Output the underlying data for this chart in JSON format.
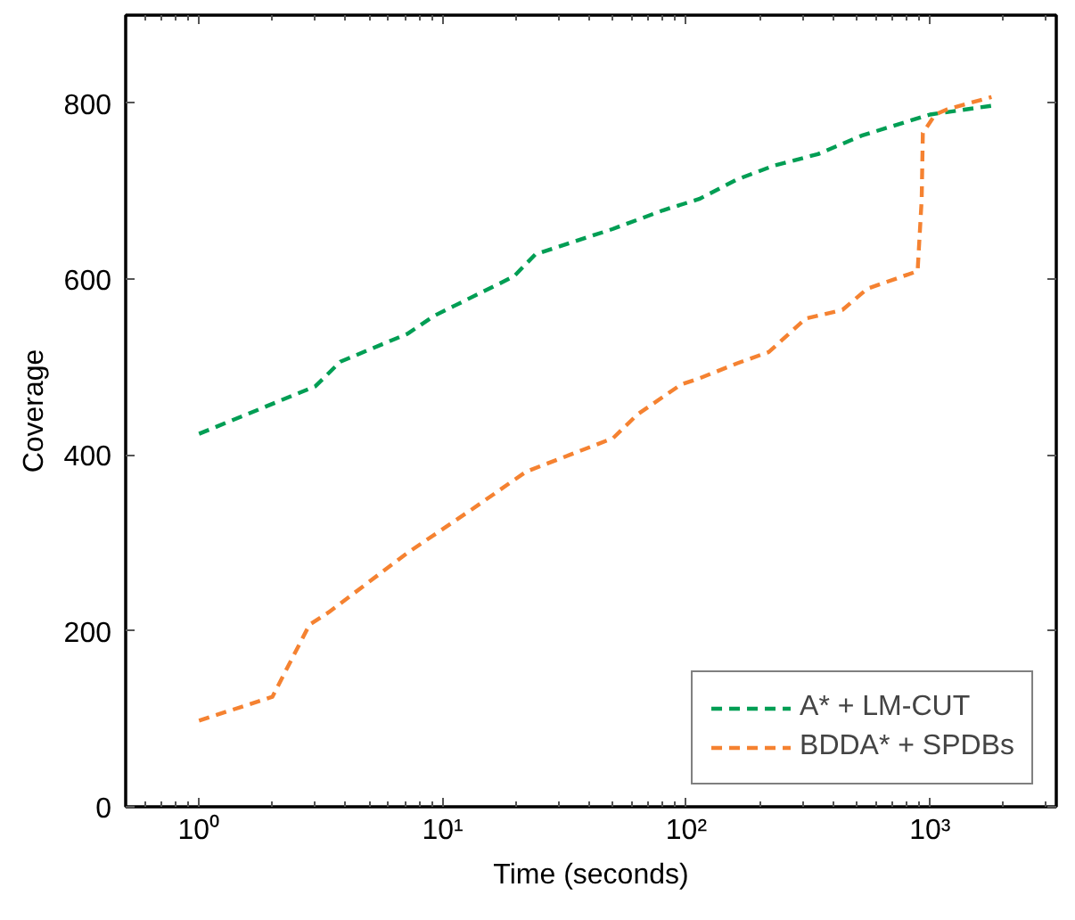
{
  "chart_data": {
    "type": "line",
    "xlabel": "Time (seconds)",
    "ylabel": "Coverage",
    "log": "x",
    "line_style": "dashed",
    "legend": "bottom right",
    "grid": false,
    "xlim": [
      0.5,
      3300
    ],
    "ylim": [
      0,
      900
    ],
    "xticks": [
      {
        "value": 1,
        "label": "10⁰"
      },
      {
        "value": 10,
        "label": "10¹"
      },
      {
        "value": 100,
        "label": "10²"
      },
      {
        "value": 1000,
        "label": "10³"
      }
    ],
    "yticks": [
      0,
      200,
      400,
      600,
      800
    ],
    "series": [
      {
        "name": "A* + LM-CUT",
        "color": "#009e54",
        "x": [
          1,
          3.0,
          3.8,
          7.2,
          9.2,
          19.6,
          24,
          50,
          80,
          113,
          161,
          229,
          347,
          524,
          1000,
          1790
        ],
        "values": [
          424,
          478,
          506,
          538,
          558,
          603,
          628,
          657,
          678,
          691,
          713,
          729,
          742,
          763,
          787,
          797
        ]
      },
      {
        "name": "BDDA* + SPDBs",
        "color": "#f58231",
        "x": [
          1,
          2,
          2.84,
          3.4,
          7.2,
          13,
          22,
          50,
          63,
          95,
          113,
          161,
          218,
          309,
          438,
          553,
          890,
          925,
          935,
          1050,
          1180,
          1790
        ],
        "values": [
          98,
          125,
          207,
          221,
          289,
          337,
          381,
          419,
          446,
          480,
          487,
          504,
          517,
          555,
          565,
          589,
          609,
          691,
          766,
          787,
          793,
          807
        ]
      }
    ]
  }
}
